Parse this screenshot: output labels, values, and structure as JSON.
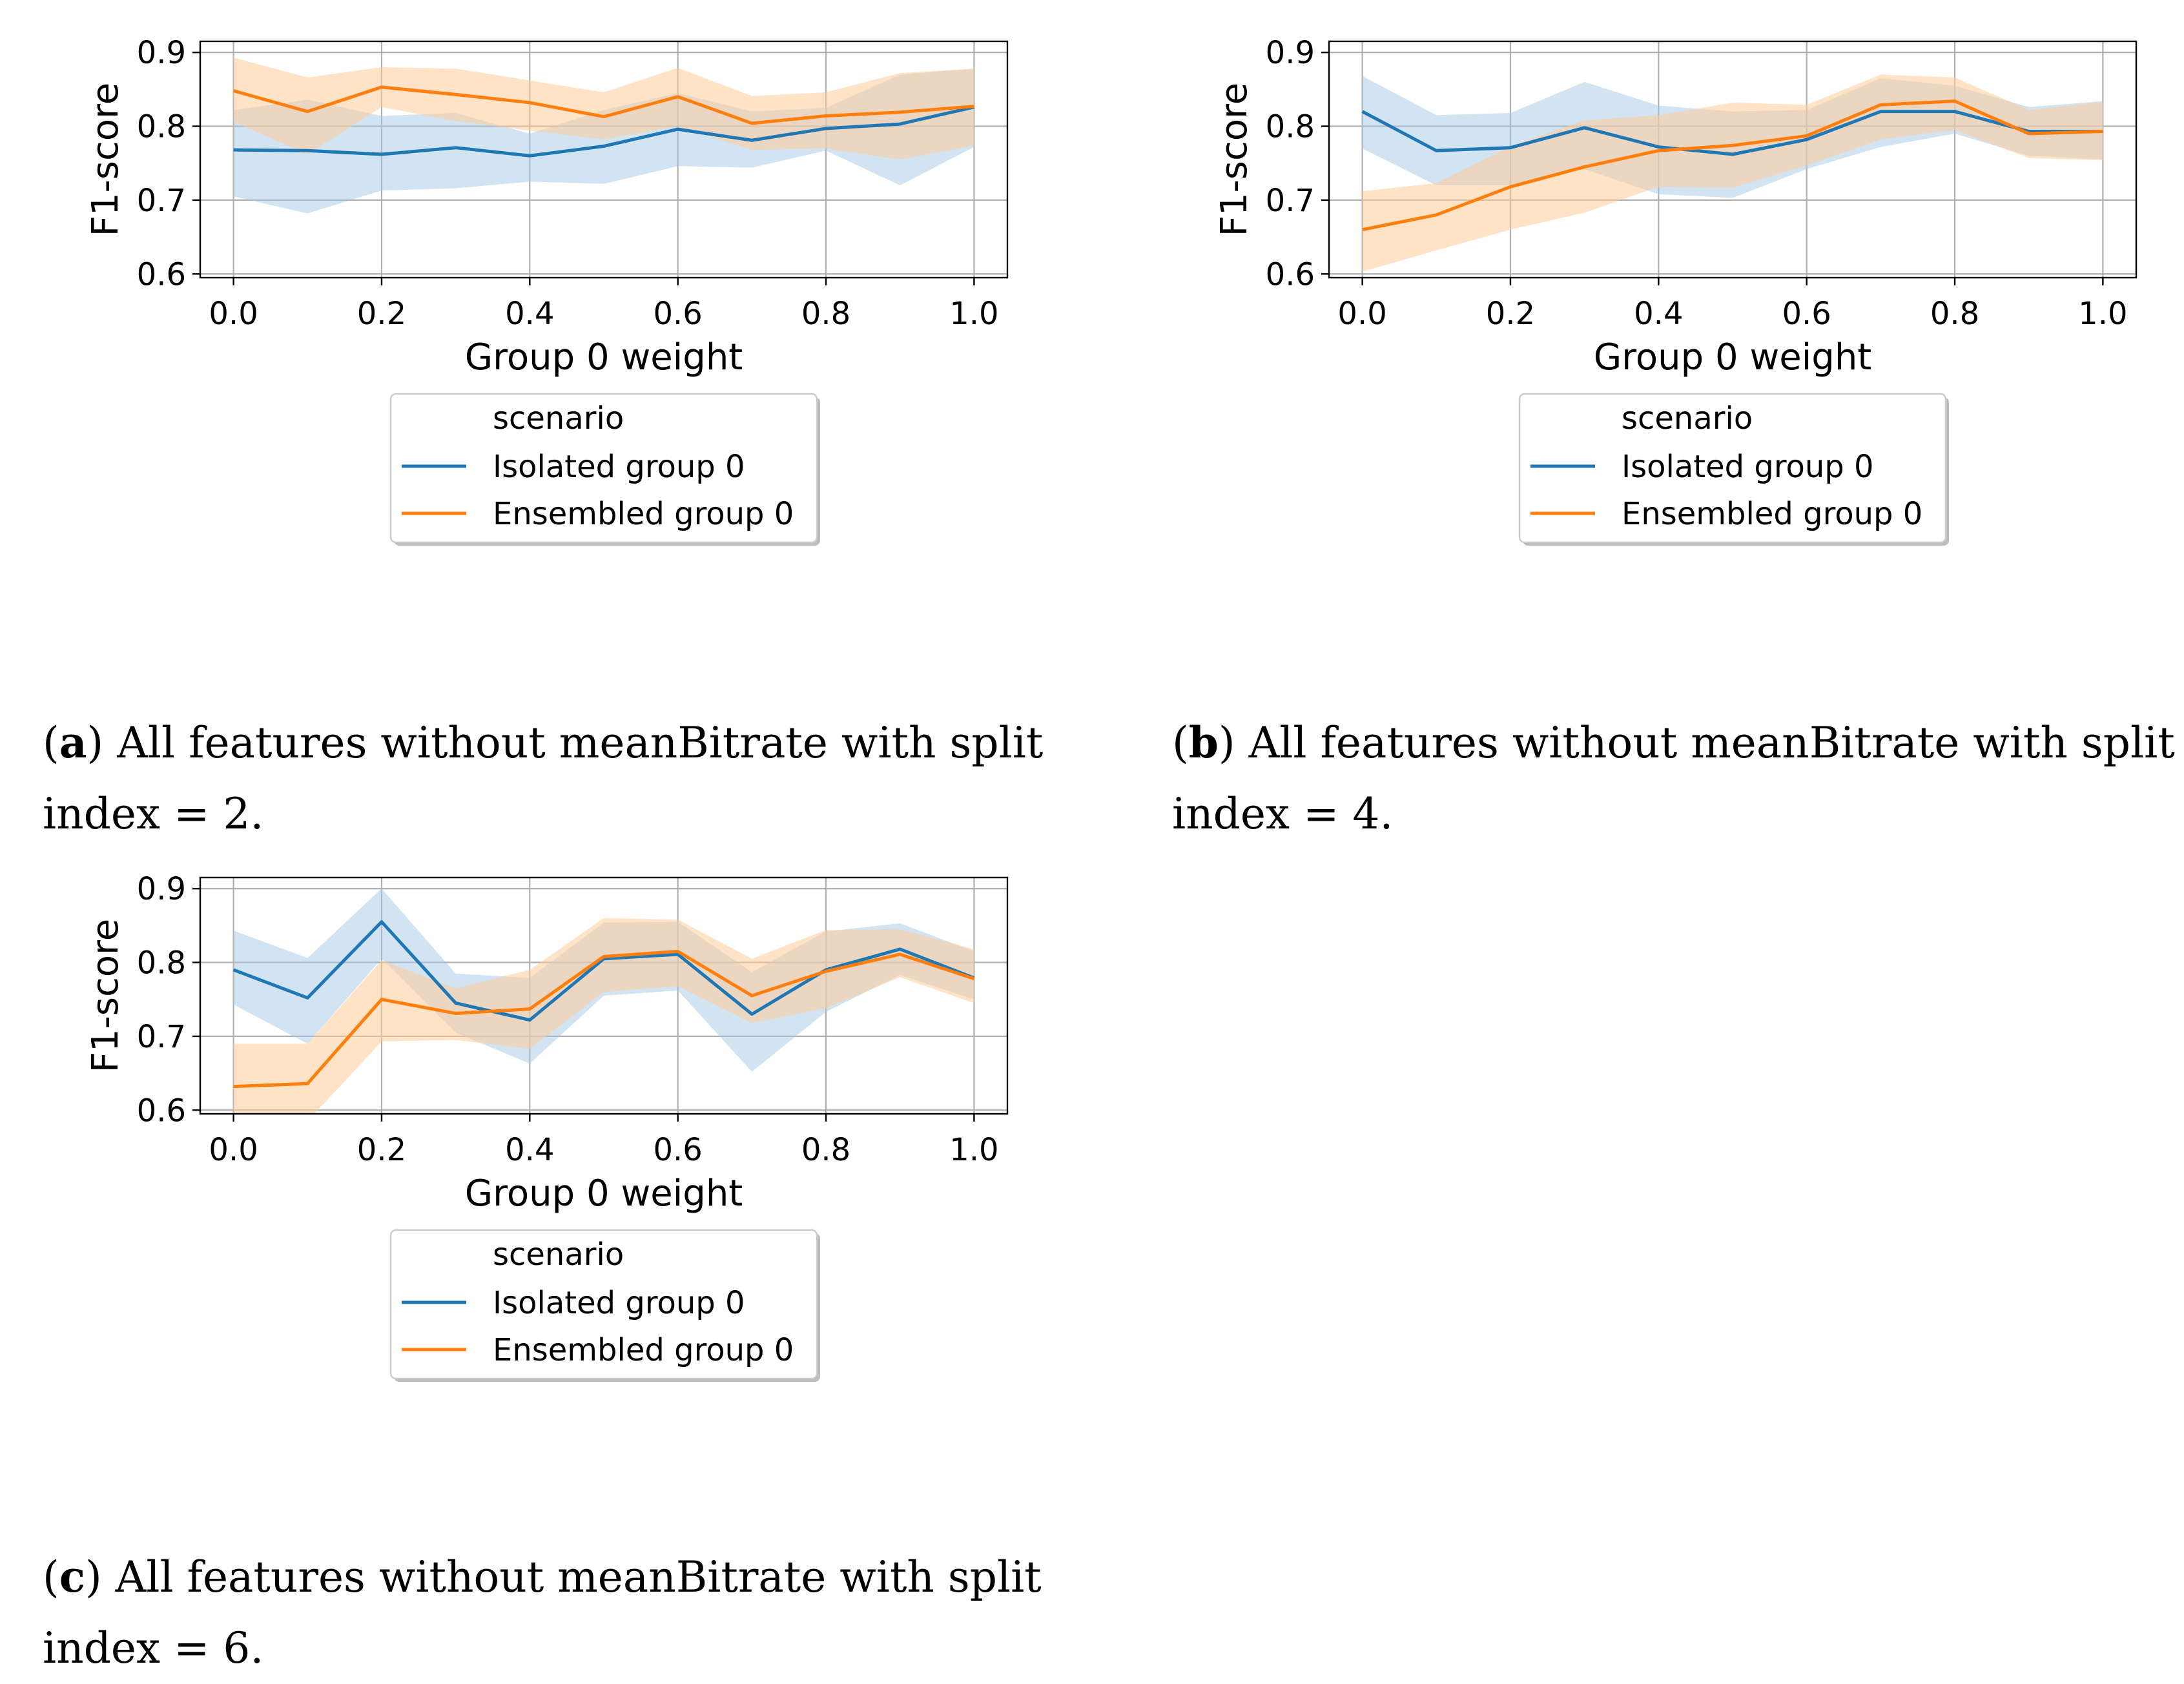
{
  "colors": {
    "isolated": "#1f77b4",
    "ensembled": "#ff7f0e",
    "isolated_band": "#a6c8e6",
    "ensembled_band": "#ffcc99",
    "grid": "#b0b0b0"
  },
  "chart_data": [
    {
      "type": "line",
      "xlabel": "Group 0 weight",
      "ylabel": "F1-score",
      "x": [
        0.0,
        0.1,
        0.2,
        0.3,
        0.4,
        0.5,
        0.6,
        0.7,
        0.8,
        0.9,
        1.0
      ],
      "xlim": [
        -0.045,
        1.045
      ],
      "ylim": [
        0.595,
        0.915
      ],
      "xticks": [
        0.0,
        0.2,
        0.4,
        0.6,
        0.8,
        1.0
      ],
      "xtick_labels": [
        "0.0",
        "0.2",
        "0.4",
        "0.6",
        "0.8",
        "1.0"
      ],
      "yticks": [
        0.6,
        0.7,
        0.8,
        0.9
      ],
      "ytick_labels": [
        "0.6",
        "0.7",
        "0.8",
        "0.9"
      ],
      "grid": true,
      "legend": {
        "title": "scenario",
        "placement": "below"
      },
      "series": [
        {
          "name": "Isolated group 0",
          "values": [
            0.768,
            0.767,
            0.762,
            0.771,
            0.76,
            0.773,
            0.796,
            0.781,
            0.797,
            0.803,
            0.826
          ],
          "lower": [
            0.705,
            0.682,
            0.713,
            0.716,
            0.725,
            0.722,
            0.746,
            0.744,
            0.767,
            0.72,
            0.772
          ],
          "upper": [
            0.822,
            0.836,
            0.814,
            0.818,
            0.79,
            0.822,
            0.845,
            0.82,
            0.825,
            0.87,
            0.878
          ]
        },
        {
          "name": "Ensembled group 0",
          "values": [
            0.848,
            0.82,
            0.853,
            0.843,
            0.832,
            0.813,
            0.84,
            0.804,
            0.814,
            0.819,
            0.827
          ],
          "lower": [
            0.806,
            0.762,
            0.826,
            0.807,
            0.794,
            0.782,
            0.8,
            0.768,
            0.77,
            0.755,
            0.774
          ],
          "upper": [
            0.893,
            0.866,
            0.88,
            0.878,
            0.862,
            0.846,
            0.879,
            0.841,
            0.846,
            0.872,
            0.878
          ]
        }
      ]
    },
    {
      "type": "line",
      "xlabel": "Group 0 weight",
      "ylabel": "F1-score",
      "x": [
        0.0,
        0.1,
        0.2,
        0.3,
        0.4,
        0.5,
        0.6,
        0.7,
        0.8,
        0.9,
        1.0
      ],
      "xlim": [
        -0.045,
        1.045
      ],
      "ylim": [
        0.595,
        0.915
      ],
      "xticks": [
        0.0,
        0.2,
        0.4,
        0.6,
        0.8,
        1.0
      ],
      "xtick_labels": [
        "0.0",
        "0.2",
        "0.4",
        "0.6",
        "0.8",
        "1.0"
      ],
      "yticks": [
        0.6,
        0.7,
        0.8,
        0.9
      ],
      "ytick_labels": [
        "0.6",
        "0.7",
        "0.8",
        "0.9"
      ],
      "grid": true,
      "legend": {
        "title": "scenario",
        "placement": "below"
      },
      "series": [
        {
          "name": "Isolated group 0",
          "values": [
            0.82,
            0.767,
            0.771,
            0.798,
            0.772,
            0.762,
            0.782,
            0.82,
            0.82,
            0.793,
            0.793
          ],
          "lower": [
            0.77,
            0.72,
            0.72,
            0.742,
            0.708,
            0.703,
            0.742,
            0.772,
            0.79,
            0.76,
            0.755
          ],
          "upper": [
            0.868,
            0.815,
            0.818,
            0.86,
            0.828,
            0.82,
            0.822,
            0.865,
            0.855,
            0.826,
            0.834
          ]
        },
        {
          "name": "Ensembled group 0",
          "values": [
            0.66,
            0.68,
            0.718,
            0.745,
            0.767,
            0.774,
            0.787,
            0.829,
            0.834,
            0.79,
            0.793
          ],
          "lower": [
            0.603,
            0.632,
            0.66,
            0.683,
            0.718,
            0.717,
            0.747,
            0.782,
            0.795,
            0.757,
            0.754
          ],
          "upper": [
            0.712,
            0.723,
            0.773,
            0.808,
            0.815,
            0.832,
            0.829,
            0.87,
            0.866,
            0.822,
            0.833
          ]
        }
      ]
    },
    {
      "type": "line",
      "xlabel": "Group 0 weight",
      "ylabel": "F1-score",
      "x": [
        0.0,
        0.1,
        0.2,
        0.3,
        0.4,
        0.5,
        0.6,
        0.7,
        0.8,
        0.9,
        1.0
      ],
      "xlim": [
        -0.045,
        1.045
      ],
      "ylim": [
        0.595,
        0.915
      ],
      "xticks": [
        0.0,
        0.2,
        0.4,
        0.6,
        0.8,
        1.0
      ],
      "xtick_labels": [
        "0.0",
        "0.2",
        "0.4",
        "0.6",
        "0.8",
        "1.0"
      ],
      "yticks": [
        0.6,
        0.7,
        0.8,
        0.9
      ],
      "ytick_labels": [
        "0.6",
        "0.7",
        "0.8",
        "0.9"
      ],
      "grid": true,
      "legend": {
        "title": "scenario",
        "placement": "below"
      },
      "series": [
        {
          "name": "Isolated group 0",
          "values": [
            0.79,
            0.752,
            0.855,
            0.745,
            0.722,
            0.805,
            0.811,
            0.73,
            0.79,
            0.818,
            0.779
          ],
          "lower": [
            0.743,
            0.69,
            0.805,
            0.705,
            0.663,
            0.755,
            0.762,
            0.652,
            0.733,
            0.783,
            0.75
          ],
          "upper": [
            0.843,
            0.806,
            0.9,
            0.785,
            0.779,
            0.854,
            0.855,
            0.787,
            0.842,
            0.853,
            0.815
          ]
        },
        {
          "name": "Ensembled group 0",
          "values": [
            0.632,
            0.636,
            0.75,
            0.731,
            0.737,
            0.808,
            0.815,
            0.755,
            0.788,
            0.811,
            0.778
          ],
          "lower": [
            0.587,
            0.585,
            0.693,
            0.695,
            0.683,
            0.76,
            0.768,
            0.718,
            0.738,
            0.78,
            0.745
          ],
          "upper": [
            0.69,
            0.69,
            0.803,
            0.765,
            0.79,
            0.86,
            0.858,
            0.805,
            0.844,
            0.845,
            0.818
          ]
        }
      ]
    }
  ],
  "captions": [
    {
      "label": "a",
      "text": ") All features without meanBitrate with split",
      "text2": "index = 2."
    },
    {
      "label": "b",
      "text": ") All features without meanBitrate with split",
      "text2": "index = 4."
    },
    {
      "label": "c",
      "text": ") All features without meanBitrate with split",
      "text2": "index = 6."
    }
  ]
}
